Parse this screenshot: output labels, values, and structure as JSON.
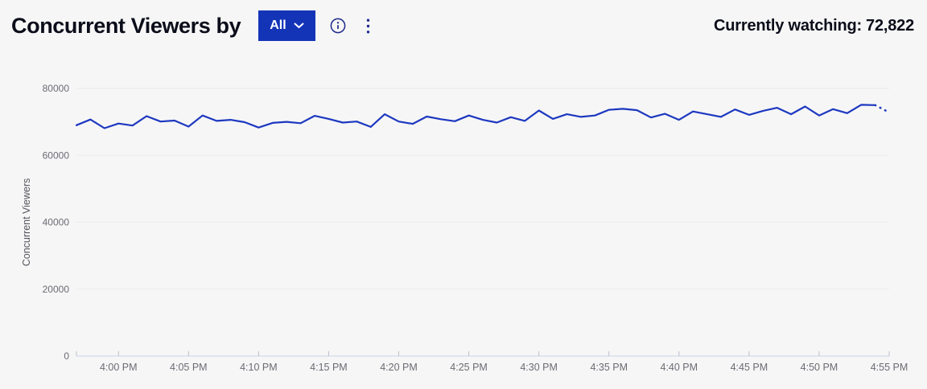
{
  "header": {
    "title": "Concurrent Viewers by",
    "filter_button": {
      "label": "All",
      "icon": "chevron-down-icon"
    },
    "info_icon": "info-circle-icon",
    "menu_icon": "kebab-vertical-icon",
    "currently_watching_label": "Currently watching:",
    "currently_watching_value": "72,822"
  },
  "colors": {
    "background": "#f6f6f6",
    "title_text": "#0b0d1a",
    "button_bg": "#1434b8",
    "button_text": "#ffffff",
    "icon_navy": "#1e2a8c",
    "line": "#1d38c0",
    "grid_line": "#ebebee",
    "axis_line": "#c9d3e6",
    "tick_mark": "#b9c0cc",
    "axis_label": "#6b6b74",
    "axis_title": "#55555e"
  },
  "chart_data": {
    "type": "line",
    "title": "",
    "xlabel": "",
    "ylabel": "Concurrent Viewers",
    "ylim": [
      0,
      80000
    ],
    "grid": "horizontal",
    "legend": "none",
    "y_ticks": [
      0,
      20000,
      40000,
      60000,
      80000
    ],
    "y_tick_labels": [
      "0",
      "20000",
      "40000",
      "60000",
      "80000"
    ],
    "x_tick_labels": [
      "4:00 PM",
      "4:05 PM",
      "4:10 PM",
      "4:15 PM",
      "4:20 PM",
      "4:25 PM",
      "4:30 PM",
      "4:35 PM",
      "4:40 PM",
      "4:45 PM",
      "4:50 PM",
      "4:55 PM"
    ],
    "x_tick_indices": [
      3,
      8,
      13,
      18,
      23,
      28,
      33,
      38,
      43,
      48,
      53,
      58
    ],
    "start_time": "3:57 PM",
    "interval_minutes": 1,
    "series": [
      {
        "name": "Concurrent Viewers",
        "color": "#1d38c0",
        "dotted_from_index": 57,
        "values": [
          69000,
          70700,
          68100,
          69500,
          68900,
          71700,
          70100,
          70400,
          68600,
          71900,
          70300,
          70600,
          69900,
          68300,
          69700,
          70000,
          69600,
          71800,
          70900,
          69800,
          70100,
          68500,
          72300,
          70100,
          69400,
          71600,
          70800,
          70200,
          71900,
          70600,
          69800,
          71400,
          70300,
          73400,
          70900,
          72300,
          71500,
          71900,
          73600,
          73900,
          73500,
          71300,
          72400,
          70600,
          73100,
          72300,
          71500,
          73700,
          72100,
          73300,
          74200,
          72300,
          74600,
          71900,
          73800,
          72600,
          75100,
          75000,
          72822
        ]
      }
    ]
  }
}
